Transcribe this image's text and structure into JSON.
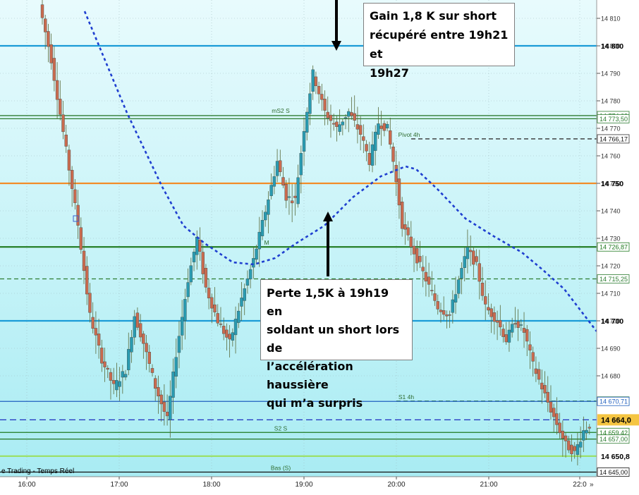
{
  "chart_data": {
    "type": "candlestick",
    "instrument_hint": "Index intraday",
    "x_ticks": [
      "16:00",
      "17:00",
      "18:00",
      "19:00",
      "20:00",
      "21:00",
      "22:0"
    ],
    "y_range": [
      14642,
      14813
    ],
    "y_ticks": [
      14810,
      14800,
      14790,
      14780,
      14770,
      14760,
      14750,
      14740,
      14730,
      14720,
      14710,
      14700,
      14690,
      14680
    ],
    "grid": true,
    "levels": [
      {
        "label": "14 800",
        "value": 14800,
        "color": "#1a9bd7",
        "bold": true
      },
      {
        "label": "mS2 S",
        "value": 14774.63,
        "tag": "14 774,63",
        "color": "#2e7d32"
      },
      {
        "label": "",
        "value": 14773.5,
        "tag": "14 773,50",
        "color": "#2e7d32"
      },
      {
        "label": "Pivot 4h",
        "value": 14766.17,
        "tag": "14 766,17",
        "color": "#333333",
        "dashed": true
      },
      {
        "label": "14 750",
        "value": 14750,
        "color": "#f28c28",
        "bold": true
      },
      {
        "label": "M",
        "value": 14726.87,
        "tag": "14 726,87",
        "color": "#1f7a1f"
      },
      {
        "label": "",
        "value": 14715.25,
        "tag": "14 715,25",
        "color": "#2e7d32",
        "dashed": true
      },
      {
        "label": "14 700",
        "value": 14700,
        "color": "#1a9bd7",
        "bold": true
      },
      {
        "label": "S1 4h",
        "value": 14670.83,
        "tag": "14 670,83",
        "color": "#2e7d32",
        "dashed": true
      },
      {
        "label": "",
        "value": 14670.71,
        "tag": "14 670,71",
        "color": "#1f5fbf"
      },
      {
        "label": "14 664,0",
        "value": 14664,
        "color": "#1f2fbf",
        "dashed": true,
        "highlight": true
      },
      {
        "label": "S2 S",
        "value": 14659.42,
        "tag": "14 659,42",
        "color": "#1f7a1f"
      },
      {
        "label": "",
        "value": 14657,
        "tag": "14 657,00",
        "color": "#2e7d32"
      },
      {
        "label": "14 650,8",
        "value": 14650.8,
        "color": "#9be06a",
        "bold": true
      },
      {
        "label": "Bas (S)",
        "value": 14645,
        "tag": "14 645,00",
        "color": "#111111"
      }
    ],
    "annotations": [
      {
        "text": "Gain 1,8 K sur short récupéré entre 19h21 et 19h27"
      },
      {
        "text": "Perte 1,5K à 19h19 en soldant un short lors de l'accélération haussière qui m'a surpris"
      }
    ],
    "footer_label": "e Trading - Temps Réel"
  },
  "callouts": {
    "gain": [
      "Gain 1,8 K sur short",
      "récupéré entre 19h21 et",
      "19h27"
    ],
    "loss": [
      "Perte 1,5K à 19h19 en",
      "soldant un short lors de",
      "l’accélération haussière",
      "qui m’a surpris"
    ]
  },
  "colors": {
    "bg_top": "#e6f9fb",
    "bg_bottom": "#9fe8f0",
    "up": "#2a9bb1",
    "down": "#c96b4f",
    "ma": "#1f3fd0"
  }
}
